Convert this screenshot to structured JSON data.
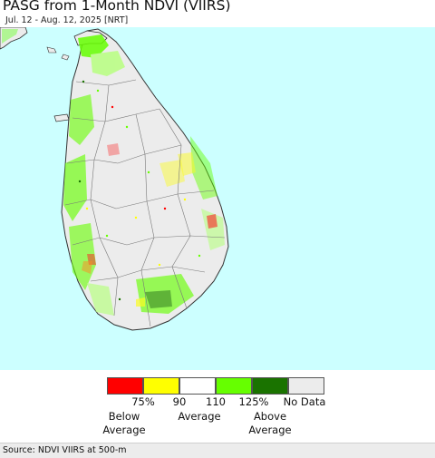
{
  "header": {
    "title": "PASG from 1-Month NDVI (VIIRS)",
    "subtitle": "Jul. 12 - Aug. 12, 2025 [NRT]"
  },
  "map": {
    "region": "Sri Lanka",
    "colors": {
      "water": "#ccffff",
      "land_no_data": "#ececec",
      "land_normal": "#ffffff",
      "border": "#333333",
      "district_line": "#777777"
    }
  },
  "legend": {
    "items": [
      {
        "color": "#ff0000"
      },
      {
        "color": "#ffff00"
      },
      {
        "color": "#ffffff"
      },
      {
        "color": "#66ff00"
      },
      {
        "color": "#1a7300"
      },
      {
        "color": "#ececec"
      }
    ],
    "ticks": [
      "75%",
      "90",
      "110",
      "125%",
      "No Data"
    ],
    "captions": {
      "below": [
        "Below",
        "Average"
      ],
      "average": "Average",
      "above": [
        "Above",
        "Average"
      ]
    }
  },
  "footer": {
    "source": "Source: NDVI VIIRS at 500-m"
  }
}
